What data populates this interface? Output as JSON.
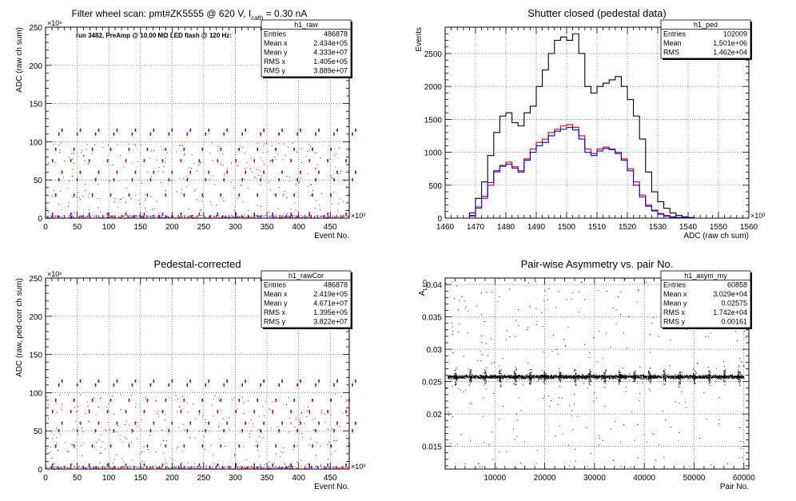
{
  "chart_data": [
    {
      "type": "scatter",
      "title_parts": [
        "Filter wheel scan: pmt#ZK5555 @   620 V, I",
        "cath",
        " = 0.30 nA"
      ],
      "annotation": "run 3482, PreAmp @ 10.00 MΩ LED flash @  120 Hz:",
      "xlabel": "Event No.",
      "ylabel": "ADC (raw ch sum)",
      "x_exponent": "×10³",
      "y_exponent": "×10⁶",
      "xlim": [
        0,
        480
      ],
      "ylim": [
        0,
        250
      ],
      "x_ticks": [
        0,
        50,
        100,
        150,
        200,
        250,
        300,
        350,
        400,
        450
      ],
      "y_ticks": [
        0,
        50,
        100,
        150,
        200,
        250
      ],
      "grid": true,
      "levels": [
        5,
        30,
        50,
        60,
        75,
        90,
        110,
        115
      ],
      "period": 29,
      "stats": {
        "name": "h1_raw",
        "rows": [
          [
            "Entries",
            "486878"
          ],
          [
            "Mean x",
            "2.434e+05"
          ],
          [
            "Mean y",
            "4.333e+07"
          ],
          [
            "RMS x",
            "1.405e+05"
          ],
          [
            "RMS y",
            "3.889e+07"
          ]
        ]
      }
    },
    {
      "type": "line",
      "title": "Shutter closed (pedestal data)",
      "xlabel": "ADC (raw ch sum)",
      "ylabel": "Events",
      "x_exponent": "×10³",
      "xlim": [
        1460,
        1560
      ],
      "ylim": [
        0,
        2900
      ],
      "x_ticks": [
        1460,
        1470,
        1480,
        1490,
        1500,
        1510,
        1520,
        1530,
        1540,
        1550,
        1560
      ],
      "y_ticks": [
        0,
        500,
        1000,
        1500,
        2000,
        2500
      ],
      "grid": true,
      "x": [
        1468,
        1470,
        1472,
        1474,
        1476,
        1478,
        1480,
        1482,
        1484,
        1486,
        1488,
        1490,
        1492,
        1494,
        1496,
        1498,
        1500,
        1502,
        1504,
        1506,
        1508,
        1510,
        1512,
        1514,
        1516,
        1518,
        1520,
        1522,
        1524,
        1526,
        1528,
        1530,
        1532,
        1534,
        1536,
        1538,
        1540
      ],
      "series": [
        {
          "color": "#000000",
          "values": [
            80,
            300,
            550,
            950,
            1300,
            1550,
            1600,
            1450,
            1400,
            1600,
            1700,
            2000,
            2250,
            2500,
            2700,
            2750,
            2700,
            2800,
            2500,
            2000,
            1900,
            2000,
            2050,
            2100,
            2150,
            2000,
            1800,
            1550,
            1200,
            700,
            400,
            250,
            150,
            80,
            40,
            20,
            10
          ]
        },
        {
          "color": "#cc0000",
          "values": [
            30,
            150,
            300,
            500,
            700,
            800,
            850,
            780,
            720,
            900,
            1050,
            1150,
            1200,
            1300,
            1350,
            1400,
            1420,
            1380,
            1250,
            1050,
            980,
            1050,
            1080,
            1050,
            1000,
            900,
            750,
            550,
            350,
            200,
            120,
            70,
            40,
            20,
            10,
            5,
            0
          ]
        },
        {
          "color": "#0000cc",
          "values": [
            40,
            170,
            330,
            540,
            720,
            790,
            820,
            760,
            700,
            880,
            1000,
            1100,
            1150,
            1250,
            1320,
            1350,
            1380,
            1340,
            1200,
            1000,
            950,
            1020,
            1060,
            1040,
            980,
            880,
            720,
            500,
            320,
            180,
            110,
            60,
            30,
            15,
            8,
            4,
            0
          ]
        }
      ],
      "stats": {
        "name": "h1_ped",
        "rows": [
          [
            "Entries",
            "102009"
          ],
          [
            "Mean",
            "1.501e+06"
          ],
          [
            "RMS",
            "1.462e+04"
          ]
        ]
      }
    },
    {
      "type": "scatter",
      "title": "Pedestal-corrected",
      "xlabel": "Event No.",
      "ylabel": "ADC (raw, ped-corr ch sum)",
      "x_exponent": "×10³",
      "y_exponent": "×10⁶",
      "xlim": [
        0,
        480
      ],
      "ylim": [
        0,
        250
      ],
      "x_ticks": [
        0,
        50,
        100,
        150,
        200,
        250,
        300,
        350,
        400,
        450
      ],
      "y_ticks": [
        0,
        50,
        100,
        150,
        200,
        250
      ],
      "grid": true,
      "levels": [
        5,
        30,
        50,
        60,
        75,
        90,
        110,
        115
      ],
      "period": 29,
      "stats": {
        "name": "h1_rawCor",
        "rows": [
          [
            "Entries",
            "486878"
          ],
          [
            "Mean x",
            "2.419e+05"
          ],
          [
            "Mean y",
            "4.671e+07"
          ],
          [
            "RMS x",
            "1.395e+05"
          ],
          [
            "RMS y",
            "3.822e+07"
          ]
        ]
      }
    },
    {
      "type": "scatter",
      "title": "Pair-wise Asymmetry vs. pair No.",
      "xlabel": "Pair No.",
      "ylabel_parts": [
        "A",
        "LED"
      ],
      "xlim": [
        0,
        61000
      ],
      "ylim": [
        0.0115,
        0.041
      ],
      "x_ticks": [
        10000,
        20000,
        30000,
        40000,
        50000,
        60000
      ],
      "y_ticks": [
        0.015,
        0.02,
        0.025,
        0.03,
        0.035,
        0.04
      ],
      "grid": true,
      "band_center": 0.0258,
      "spike_period": 3000,
      "stats": {
        "name": "h1_asym_my",
        "rows": [
          [
            "Entries",
            "60858"
          ],
          [
            "Mean x",
            "3.029e+04"
          ],
          [
            "Mean y",
            "0.02575"
          ],
          [
            "RMS x",
            "1.742e+04"
          ],
          [
            "RMS y",
            "0.00161"
          ]
        ]
      }
    }
  ]
}
